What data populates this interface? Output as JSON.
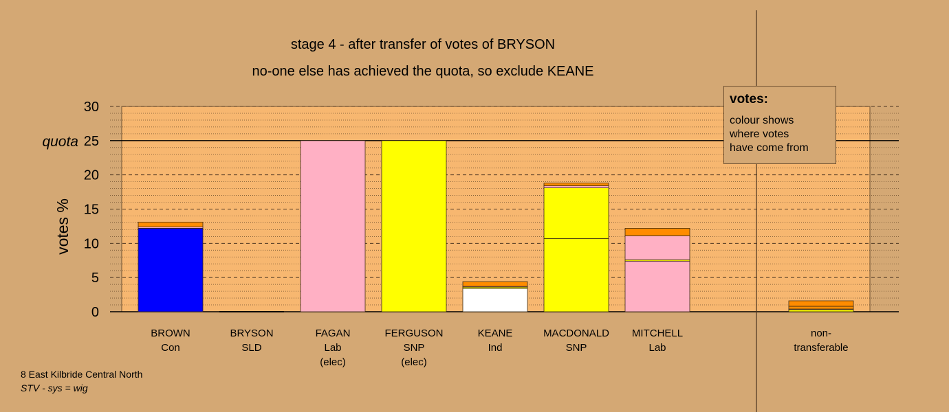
{
  "header": {
    "title": "stage 4 - after transfer of votes of BRYSON",
    "subtitle": "no-one else has achieved the quota, so exclude KEANE"
  },
  "legend": {
    "heading": "votes:",
    "lines": [
      "colour shows",
      "where votes",
      "have come from"
    ]
  },
  "footer": {
    "line1": "8 East Kilbride Central North",
    "line2": "STV - sys = wig"
  },
  "colors": {
    "background": "#d4a874",
    "plot": "#f7b770",
    "con": "#0000ff",
    "lab": "#ffb0c4",
    "snp": "#ffff00",
    "ind": "#ffffff",
    "sld": "#ff8c00"
  },
  "chart_data": {
    "type": "bar",
    "stacked": true,
    "title": "stage 4 - after transfer of votes of BRYSON",
    "subtitle": "no-one else has achieved the quota, so exclude KEANE",
    "ylabel": "votes %",
    "ylim": [
      0,
      30
    ],
    "yticks": [
      "0",
      "5",
      "10",
      "15",
      "20",
      "25",
      "30"
    ],
    "quota_label": "quota",
    "quota": 25,
    "grid": true,
    "legend_placement": "top-right",
    "categories": [
      {
        "lines": [
          "BROWN",
          "Con"
        ],
        "segments": [
          {
            "value": 12.2,
            "color": "#0000ff"
          },
          {
            "value": 0.2,
            "color": "#ffb0c4"
          },
          {
            "value": 0.7,
            "color": "#ff8c00"
          }
        ]
      },
      {
        "lines": [
          "BRYSON",
          "SLD"
        ],
        "segments": []
      },
      {
        "lines": [
          "FAGAN",
          "Lab",
          "(elec)"
        ],
        "segments": [
          {
            "value": 25,
            "color": "#ffb0c4"
          }
        ]
      },
      {
        "lines": [
          "FERGUSON",
          "SNP",
          "(elec)"
        ],
        "segments": [
          {
            "value": 25,
            "color": "#ffff00"
          }
        ]
      },
      {
        "lines": [
          "KEANE",
          "Ind"
        ],
        "segments": [
          {
            "value": 3.4,
            "color": "#ffffff"
          },
          {
            "value": 0.2,
            "color": "#ffff00"
          },
          {
            "value": 0.1,
            "color": "#ffb0c4"
          },
          {
            "value": 0.7,
            "color": "#ff8c00"
          }
        ]
      },
      {
        "lines": [
          "MACDONALD",
          "SNP"
        ],
        "segments": [
          {
            "value": 10.7,
            "color": "#ffff00"
          },
          {
            "value": 7.4,
            "color": "#ffff00"
          },
          {
            "value": 0.3,
            "color": "#ffb0c4"
          },
          {
            "value": 0.4,
            "color": "#ff8c00"
          }
        ]
      },
      {
        "lines": [
          "MITCHELL",
          "Lab"
        ],
        "segments": [
          {
            "value": 7.4,
            "color": "#ffb0c4"
          },
          {
            "value": 0.2,
            "color": "#ffff00"
          },
          {
            "value": 3.5,
            "color": "#ffb0c4"
          },
          {
            "value": 1.1,
            "color": "#ff8c00"
          }
        ]
      }
    ],
    "non_transferable": {
      "lines": [
        "non-",
        "transferable"
      ],
      "segments": [
        {
          "value": 0.3,
          "color": "#ffff00"
        },
        {
          "value": 0.1,
          "color": "#ffb0c4"
        },
        {
          "value": 0.4,
          "color": "#ff8c00"
        },
        {
          "value": 0.8,
          "color": "#ff8c00"
        }
      ]
    }
  }
}
